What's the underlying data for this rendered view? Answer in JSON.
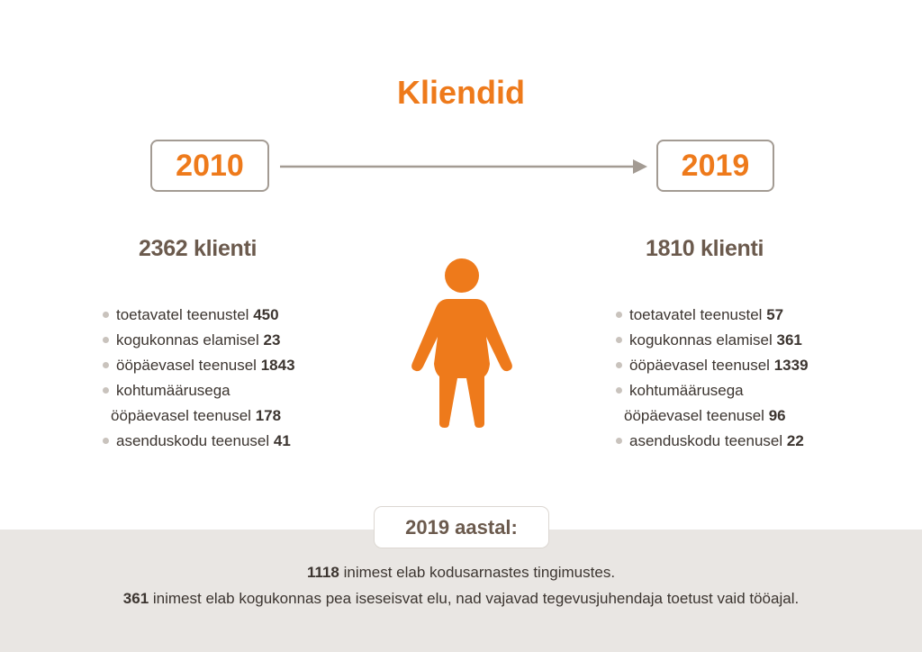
{
  "title": "Kliendid",
  "years": {
    "start": "2010",
    "end": "2019"
  },
  "left": {
    "total": "2362 klienti",
    "items": [
      {
        "label": "toetavatel teenustel",
        "value": "450"
      },
      {
        "label": "kogukonnas elamisel",
        "value": "23"
      },
      {
        "label": "ööpäevasel teenusel",
        "value": "1843"
      },
      {
        "label": "kohtumäärusega",
        "label2": "ööpäevasel teenusel",
        "value": "178"
      },
      {
        "label": "asenduskodu teenusel",
        "value": "41"
      }
    ]
  },
  "right": {
    "total": "1810 klienti",
    "items": [
      {
        "label": "toetavatel teenustel",
        "value": "57"
      },
      {
        "label": "kogukonnas elamisel",
        "value": "361"
      },
      {
        "label": "ööpäevasel teenusel",
        "value": "1339"
      },
      {
        "label": "kohtumäärusega",
        "label2": "ööpäevasel teenusel",
        "value": "96"
      },
      {
        "label": "asenduskodu teenusel",
        "value": "22"
      }
    ]
  },
  "summary": {
    "tag": "2019 aastal:",
    "line1_value": "1118",
    "line1_text": " inimest elab kodusarnastes tingimustes.",
    "line2_value": "361",
    "line2_text": " inimest elab kogukonnas pea iseseisvat elu, nad vajavad tegevusjuhendaja toetust vaid tööajal."
  },
  "colors": {
    "accent": "#ee7a1b",
    "heading": "#6b5a4d",
    "border": "#a39b93",
    "band": "#e9e6e3"
  },
  "icons": {
    "figure": "person-icon",
    "arrow": "arrow-right-icon"
  }
}
